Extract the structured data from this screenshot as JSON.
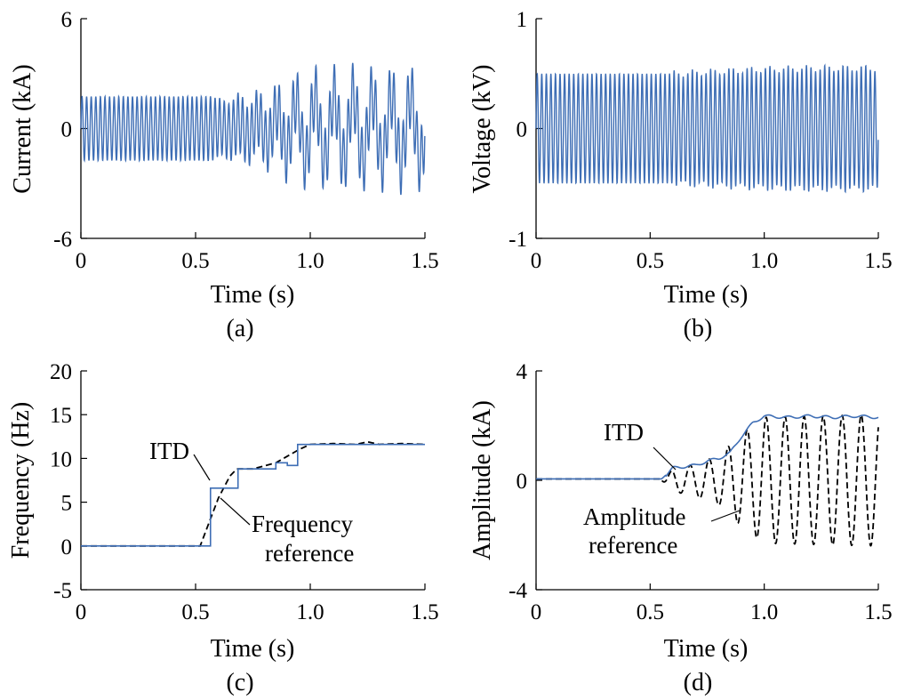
{
  "chart_data": [
    {
      "id": "a",
      "type": "line",
      "caption": "(a)",
      "xlabel": "Time (s)",
      "ylabel": "Current (kA)",
      "xlim": [
        0,
        1.5
      ],
      "ylim": [
        -6,
        6
      ],
      "xticks": [
        0,
        0.5,
        1.0,
        1.5
      ],
      "xtick_labels": [
        "0",
        "0.5",
        "1.0",
        "1.5"
      ],
      "yticks": [
        6,
        0,
        -6
      ],
      "ytick_labels": [
        "6",
        "0",
        "-6"
      ],
      "grid": false,
      "series": [
        {
          "color": "#3e6eb5",
          "style": "solid",
          "description_points": {
            "t": [
              0,
              0.55,
              0.56,
              0.62,
              0.68,
              0.75,
              0.85,
              0.9,
              1.0,
              1.1,
              1.2,
              1.3,
              1.4,
              1.5
            ],
            "amplitude_kA": [
              1.75,
              1.75,
              1.8,
              1.6,
              1.9,
              2.0,
              2.4,
              2.8,
              3.2,
              3.2,
              3.3,
              3.2,
              3.3,
              3.2
            ]
          },
          "oscillation_hz": 50,
          "low_freq_component_hz_after_0.56s": 12
        }
      ]
    },
    {
      "id": "b",
      "type": "line",
      "caption": "(b)",
      "xlabel": "Time (s)",
      "ylabel": "Voltage (kV)",
      "xlim": [
        0,
        1.5
      ],
      "ylim": [
        -1,
        1
      ],
      "xticks": [
        0,
        0.5,
        1.0,
        1.5
      ],
      "xtick_labels": [
        "0",
        "0.5",
        "1.0",
        "1.5"
      ],
      "yticks": [
        1,
        0,
        -1
      ],
      "ytick_labels": [
        "1",
        "0",
        "-1"
      ],
      "grid": false,
      "series": [
        {
          "color": "#3e6eb5",
          "style": "solid",
          "description_points": {
            "t": [
              0,
              0.6,
              0.8,
              1.0,
              1.2,
              1.5
            ],
            "amplitude_kV": [
              0.5,
              0.5,
              0.52,
              0.54,
              0.55,
              0.55
            ]
          },
          "oscillation_hz": 50
        }
      ]
    },
    {
      "id": "c",
      "type": "line",
      "caption": "(c)",
      "xlabel": "Time (s)",
      "ylabel": "Frequency (Hz)",
      "xlim": [
        0,
        1.5
      ],
      "ylim": [
        -5,
        20
      ],
      "xticks": [
        0,
        0.5,
        1.0,
        1.5
      ],
      "xtick_labels": [
        "0",
        "0.5",
        "1.0",
        "1.5"
      ],
      "yticks": [
        20,
        15,
        10,
        5,
        0,
        -5
      ],
      "ytick_labels": [
        "20",
        "15",
        "10",
        "5",
        "0",
        "-5"
      ],
      "grid": false,
      "annotations": [
        {
          "text": "ITD"
        },
        {
          "lines": [
            "Frequency",
            "reference"
          ]
        }
      ],
      "series": [
        {
          "label": "ITD",
          "color": "#3e6eb5",
          "style": "step",
          "x": [
            0,
            0.565,
            0.565,
            0.575,
            0.575,
            0.685,
            0.685,
            0.85,
            0.85,
            0.9,
            0.9,
            0.945,
            0.945,
            1.5
          ],
          "y": [
            0,
            0,
            6.6,
            6.6,
            6.6,
            6.6,
            8.8,
            8.8,
            9.5,
            9.5,
            9.2,
            9.2,
            11.6,
            11.6
          ]
        },
        {
          "label": "Frequency reference",
          "color": "#000000",
          "style": "dashed",
          "x": [
            0,
            0.52,
            0.6,
            0.65,
            0.68,
            0.75,
            0.85,
            0.95,
            1.0,
            1.1,
            1.2,
            1.25,
            1.3,
            1.4,
            1.5
          ],
          "y": [
            0,
            0,
            5.5,
            8.0,
            8.8,
            8.8,
            9.5,
            11.0,
            11.6,
            11.7,
            11.6,
            11.9,
            11.6,
            11.7,
            11.6
          ]
        }
      ]
    },
    {
      "id": "d",
      "type": "line",
      "caption": "(d)",
      "xlabel": "Time (s)",
      "ylabel": "Amplitude (kA)",
      "xlim": [
        0,
        1.5
      ],
      "ylim": [
        -4,
        4
      ],
      "xticks": [
        0,
        0.5,
        1.0,
        1.5
      ],
      "xtick_labels": [
        "0",
        "0.5",
        "1.0",
        "1.5"
      ],
      "yticks": [
        4,
        0,
        -4
      ],
      "ytick_labels": [
        "4",
        "0",
        "-4"
      ],
      "grid": false,
      "annotations": [
        {
          "text": "ITD"
        },
        {
          "lines": [
            "Amplitude",
            "reference"
          ]
        }
      ],
      "series": [
        {
          "label": "ITD",
          "color": "#3e6eb5",
          "style": "solid",
          "x": [
            0,
            0.55,
            0.57,
            0.6,
            0.65,
            0.7,
            0.75,
            0.8,
            0.85,
            0.9,
            0.95,
            1.0,
            1.1,
            1.2,
            1.3,
            1.4,
            1.5
          ],
          "y": [
            0.05,
            0.05,
            0.2,
            0.45,
            0.5,
            0.55,
            0.7,
            0.8,
            1.0,
            1.6,
            2.1,
            2.35,
            2.3,
            2.35,
            2.3,
            2.35,
            2.3
          ]
        },
        {
          "label": "Amplitude reference",
          "color": "#000000",
          "style": "dashed",
          "envelope_t": [
            0.55,
            0.6,
            0.7,
            0.8,
            0.9,
            1.0,
            1.5
          ],
          "envelope_amp": [
            0.0,
            0.4,
            0.6,
            0.9,
            1.7,
            2.3,
            2.4
          ],
          "offset_before_0.55s": 0.05,
          "oscillation_hz": 12
        }
      ]
    }
  ]
}
